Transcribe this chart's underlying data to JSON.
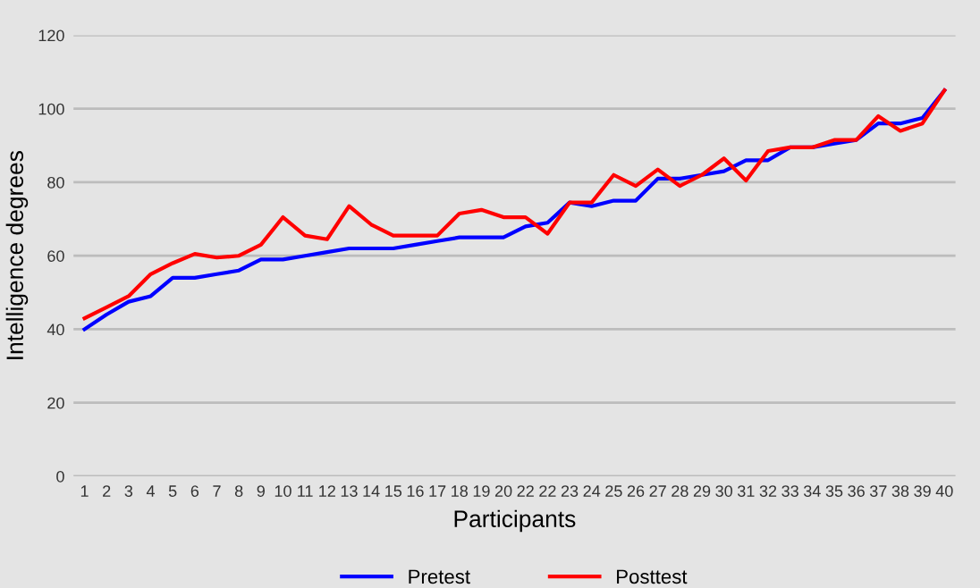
{
  "chart_data": {
    "type": "line",
    "xlabel": "Participants",
    "ylabel": "Intelligence degrees",
    "categories": [
      "1",
      "2",
      "3",
      "4",
      "5",
      "6",
      "7",
      "8",
      "9",
      "10",
      "11",
      "12",
      "13",
      "14",
      "15",
      "16",
      "17",
      "18",
      "19",
      "20",
      "22",
      "22",
      "23",
      "24",
      "25",
      "26",
      "27",
      "28",
      "29",
      "30",
      "31",
      "32",
      "33",
      "34",
      "35",
      "36",
      "37",
      "38",
      "39",
      "40"
    ],
    "series": [
      {
        "name": "Pretest",
        "color": "#0000ff",
        "values": [
          40,
          44,
          47.5,
          49,
          54,
          54,
          55,
          56,
          59,
          59,
          60,
          61,
          62,
          62,
          62,
          63,
          64,
          65,
          65,
          65,
          68,
          69,
          74.5,
          73.5,
          75,
          75,
          81,
          81,
          82,
          83,
          86,
          86,
          89.5,
          89.5,
          90.5,
          91.5,
          96,
          96,
          97.5,
          105
        ]
      },
      {
        "name": "Posttest",
        "color": "#ff0000",
        "values": [
          43,
          46,
          49,
          55,
          58,
          60.5,
          59.5,
          60,
          63,
          70.5,
          65.5,
          64.5,
          73.5,
          68.5,
          65.5,
          65.5,
          65.5,
          71.5,
          72.5,
          70.5,
          70.5,
          66,
          74.5,
          74.5,
          82,
          79,
          83.5,
          79,
          82,
          86.5,
          80.5,
          88.5,
          89.5,
          89.5,
          91.5,
          91.5,
          98,
          94,
          96,
          105
        ]
      }
    ],
    "ylim": [
      0,
      120
    ],
    "yticks": [
      0,
      20,
      40,
      60,
      80,
      100,
      120
    ],
    "grid": "y",
    "legend": "bottom",
    "marker": "none",
    "line_style": "solid"
  }
}
